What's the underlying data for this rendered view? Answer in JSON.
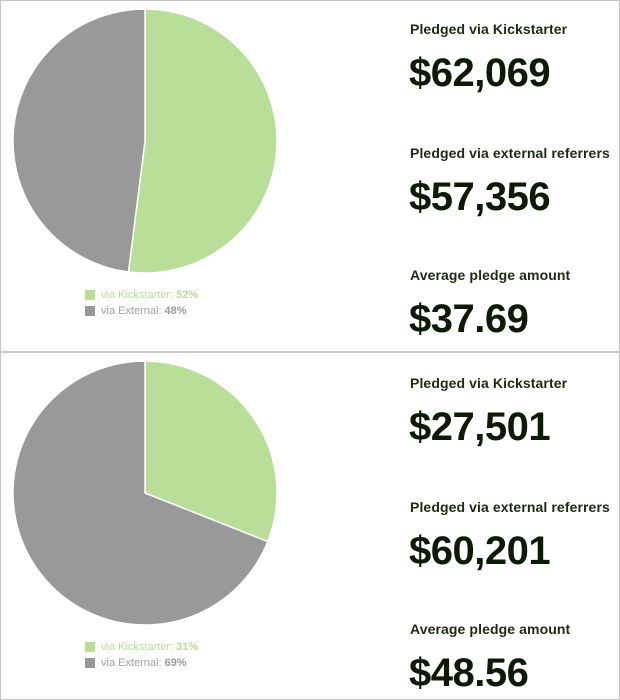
{
  "colors": {
    "kickstarter": "#b8de98",
    "external": "#999999",
    "value_text": "#0c1a06"
  },
  "panels": [
    {
      "chart_data": {
        "type": "pie",
        "slices": [
          {
            "label": "via Kickstarter",
            "percent": 52
          },
          {
            "label": "via External",
            "percent": 48
          }
        ]
      },
      "legend": [
        {
          "label": "via Kickstarter:",
          "value": "52%"
        },
        {
          "label": "via External:",
          "value": "48%"
        }
      ],
      "stats": [
        {
          "label": "Pledged via Kickstarter",
          "value": "$62,069"
        },
        {
          "label": "Pledged via external referrers",
          "value": "$57,356"
        },
        {
          "label": "Average pledge amount",
          "value": "$37.69"
        }
      ]
    },
    {
      "chart_data": {
        "type": "pie",
        "slices": [
          {
            "label": "via Kickstarter",
            "percent": 31
          },
          {
            "label": "via External",
            "percent": 69
          }
        ]
      },
      "legend": [
        {
          "label": "via Kickstarter:",
          "value": "31%"
        },
        {
          "label": "via External:",
          "value": "69%"
        }
      ],
      "stats": [
        {
          "label": "Pledged via Kickstarter",
          "value": "$27,501"
        },
        {
          "label": "Pledged via external referrers",
          "value": "$60,201"
        },
        {
          "label": "Average pledge amount",
          "value": "$48.56"
        }
      ]
    }
  ]
}
